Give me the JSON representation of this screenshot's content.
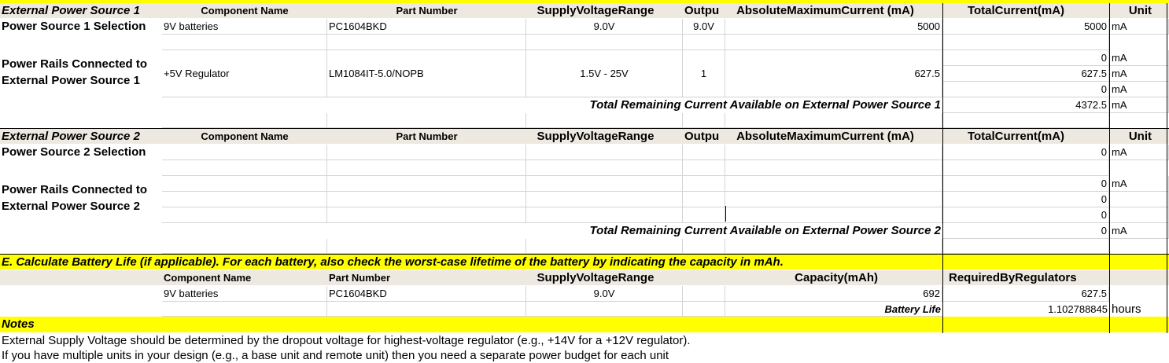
{
  "colors": {
    "yellow": "#ffff00",
    "header_bg": "#ede9e1",
    "gridline": "#d4d4d4",
    "border": "#000000"
  },
  "headers": {
    "component_name": "Component Name",
    "part_number": "Part Number",
    "supply_voltage_range": "SupplyVoltageRange",
    "output": "Outpu",
    "absolute_max_current": "AbsoluteMaximumCurrent (mA)",
    "total_current": "TotalCurrent(mA)",
    "unit": "Unit",
    "capacity": "Capacity(mAh)",
    "required_by_regulators": "RequiredByRegulators"
  },
  "source1": {
    "title": "External Power Source 1",
    "selection_label": "Power Source 1 Selection",
    "selection": {
      "component": "9V batteries",
      "part": "PC1604BKD",
      "voltage": "9.0V",
      "output": "9.0V",
      "max_current": "5000",
      "total": "5000",
      "unit": "mA"
    },
    "rails_label": "Power Rails Connected to External Power Source 1",
    "rail": {
      "component": "+5V Regulator",
      "part": "LM1084IT-5.0/NOPB",
      "voltage": "1.5V - 25V",
      "output": "1",
      "max_current": "627.5"
    },
    "totals": [
      {
        "value": "0",
        "unit": "mA"
      },
      {
        "value": "627.5",
        "unit": "mA"
      },
      {
        "value": "0",
        "unit": "mA"
      }
    ],
    "remaining_label": "Total Remaining Current Available on External Power Source 1",
    "remaining_value": "4372.5",
    "remaining_unit": "mA"
  },
  "source2": {
    "title": "External Power Source 2",
    "selection_label": "Power Source 2 Selection",
    "selection_total": "0",
    "selection_unit": "mA",
    "rails_label": "Power Rails Connected to External Power Source 2",
    "totals": [
      {
        "value": "0",
        "unit": "mA"
      },
      {
        "value": "0",
        "unit": ""
      },
      {
        "value": "0",
        "unit": ""
      }
    ],
    "remaining_label": "Total Remaining Current Available on External Power Source 2",
    "remaining_value": "0",
    "remaining_unit": "mA"
  },
  "battery": {
    "heading": "E. Calculate Battery Life (if applicable).  For each battery, also check the worst-case lifetime of the battery by indicating the capacity in mAh.",
    "row": {
      "component": "9V batteries",
      "part": "PC1604BKD",
      "voltage": "9.0V",
      "capacity": "692",
      "required": "627.5"
    },
    "life_label": "Battery Life",
    "life_value": "1.102788845",
    "life_unit": "hours"
  },
  "notes": {
    "title": "Notes",
    "lines": [
      "External Supply Voltage should be determined by the dropout voltage for highest-voltage regulator (e.g., +14V for a +12V regulator).",
      "If you have multiple units in your design (e.g., a base unit and remote unit) then you need a separate power budget for each unit"
    ]
  }
}
